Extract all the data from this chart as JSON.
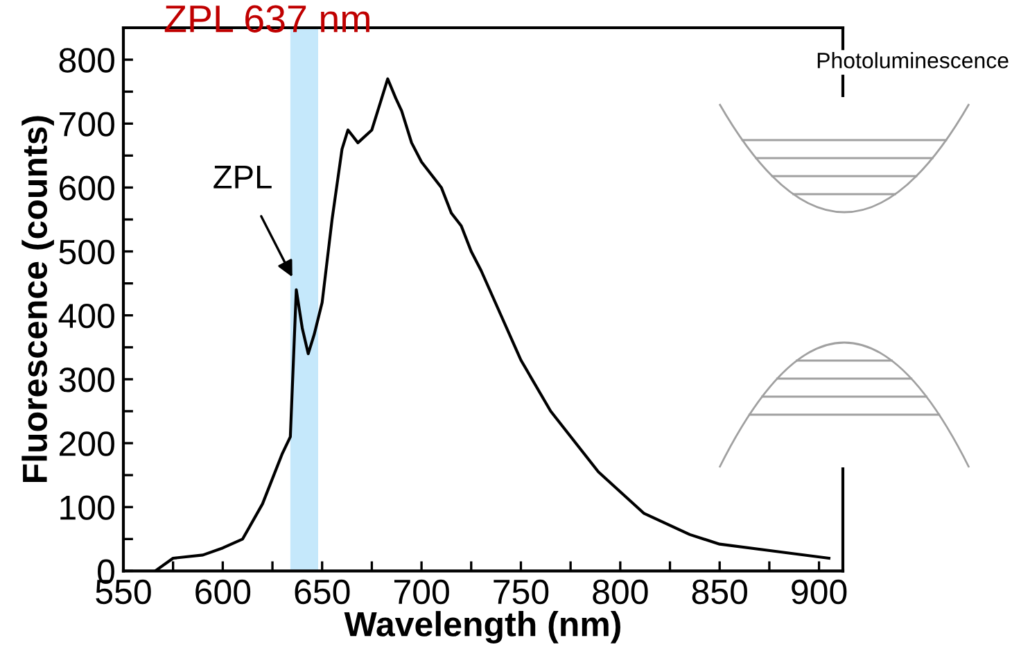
{
  "chart_data": {
    "type": "line",
    "title": "ZPL 637 nm",
    "xlabel": "Wavelength (nm)",
    "ylabel": "Fluorescence (counts)",
    "x": [
      566,
      575,
      590,
      600,
      610,
      620,
      630,
      634,
      637,
      640,
      643,
      646,
      650,
      655,
      660,
      663,
      668,
      675,
      680,
      683,
      687,
      690,
      695,
      700,
      705,
      710,
      715,
      720,
      725,
      730,
      740,
      750,
      765,
      789,
      812,
      835,
      850,
      880,
      905
    ],
    "series": [
      {
        "color": "#000000",
        "values": [
          0,
          20,
          25,
          36,
          50,
          105,
          184,
          210,
          440,
          380,
          340,
          370,
          420,
          550,
          660,
          690,
          670,
          690,
          740,
          770,
          740,
          720,
          670,
          640,
          620,
          600,
          560,
          540,
          500,
          470,
          400,
          330,
          250,
          155,
          90,
          57,
          42,
          30,
          20
        ]
      }
    ],
    "xlim": [
      550,
      912
    ],
    "ylim": [
      0,
      850
    ],
    "xticks": [
      550,
      {
        "value": 575,
        "label": null
      },
      600,
      {
        "value": 625,
        "label": null
      },
      650,
      {
        "value": 675,
        "label": null
      },
      700,
      {
        "value": 725,
        "label": null
      },
      750,
      {
        "value": 775,
        "label": null
      },
      800,
      {
        "value": 825,
        "label": null
      },
      850,
      {
        "value": 875,
        "label": null
      },
      900
    ],
    "yticks": [
      0,
      {
        "value": 50,
        "label": null
      },
      100,
      {
        "value": 150,
        "label": null
      },
      200,
      {
        "value": 250,
        "label": null
      },
      300,
      {
        "value": 350,
        "label": null
      },
      400,
      {
        "value": 450,
        "label": null
      },
      500,
      {
        "value": 550,
        "label": null
      },
      600,
      {
        "value": 650,
        "label": null
      },
      700,
      {
        "value": 750,
        "label": null
      },
      800
    ],
    "bands": [
      {
        "axis": "x",
        "from": 634,
        "to": 648,
        "color": "#c5e8fb"
      }
    ],
    "annotations": [
      {
        "text": "ZPL",
        "x": 635,
        "y": 460
      },
      "Photoluminescence"
    ],
    "grid": false,
    "legend": false,
    "marker": "none",
    "line_style": "solid"
  }
}
